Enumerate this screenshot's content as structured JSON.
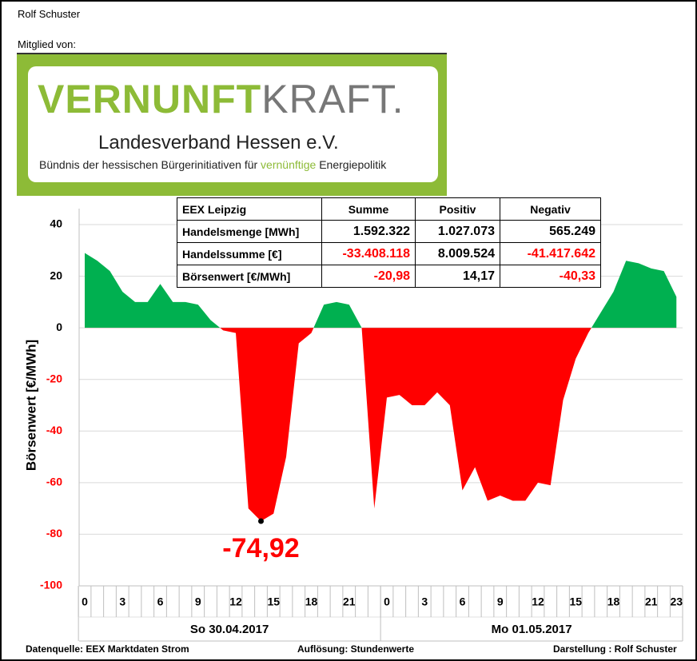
{
  "header": {
    "author": "Rolf Schuster",
    "member": "Mitglied von:"
  },
  "logo": {
    "brand_a": "VERNUNFT",
    "brand_b": "KRAFT.",
    "subtitle": "Landesverband Hessen e.V.",
    "tagline_a": "Bündnis der hessischen Bürgerinitiativen für ",
    "tagline_b": "vernünftige",
    "tagline_c": " Energiepolitik"
  },
  "table": {
    "header": [
      "EEX Leipzig",
      "Summe",
      "Positiv",
      "Negativ"
    ],
    "rows": [
      [
        "Handelsmenge [MWh]",
        "1.592.322",
        "1.027.073",
        "565.249"
      ],
      [
        "Handelssumme [€]",
        "-33.408.118",
        "8.009.524",
        "-41.417.642"
      ],
      [
        "Börsenwert [€/MWh]",
        "-20,98",
        "14,17",
        "-40,33"
      ]
    ]
  },
  "chart_data": {
    "type": "area",
    "ylabel": "Börsenwert  [€/MWh]",
    "categories": [
      0,
      null,
      null,
      3,
      null,
      null,
      6,
      null,
      null,
      9,
      null,
      null,
      12,
      null,
      null,
      15,
      null,
      null,
      18,
      null,
      null,
      21,
      null,
      null,
      0,
      null,
      null,
      3,
      null,
      null,
      6,
      null,
      null,
      9,
      null,
      null,
      12,
      null,
      null,
      15,
      null,
      null,
      18,
      null,
      null,
      21,
      null,
      23
    ],
    "groups": [
      "So 30.04.2017",
      "Mo 01.05.2017"
    ],
    "values": [
      29,
      26,
      22,
      14,
      10,
      10,
      17,
      10,
      10,
      9,
      3,
      -1,
      -2,
      -70,
      -74.92,
      -72,
      -50,
      -6,
      -2,
      9,
      10,
      9,
      0,
      -70,
      -27,
      -26,
      -30,
      -30,
      -25,
      -30,
      -63,
      -54,
      -67,
      -65,
      -67,
      -67,
      -60,
      -61,
      -28,
      -12,
      -2,
      6,
      14,
      26,
      25,
      23,
      22,
      12
    ],
    "value_labels": [
      null,
      null,
      null,
      null,
      null,
      null,
      null,
      null,
      null,
      null,
      null,
      null,
      null,
      null,
      "-74,92",
      null,
      null,
      null,
      null,
      null,
      null,
      null,
      null,
      null,
      null,
      null,
      null,
      null,
      null,
      null,
      null,
      null,
      null,
      null,
      null,
      null,
      null,
      null,
      null,
      null,
      null,
      null,
      null,
      null,
      null,
      null,
      null,
      null
    ],
    "color_positive": "#00b050",
    "color_negative": "#ff0000",
    "ylim": [
      -100,
      40
    ],
    "yticks": [
      -100,
      -80,
      -60,
      -40,
      -20,
      0,
      20,
      40
    ],
    "grid": true
  },
  "footer": {
    "source": "Datenquelle:  EEX Marktdaten Strom",
    "resolution": "Auflösung:  Stundenwerte",
    "credit": "Darstellung :  Rolf Schuster"
  }
}
